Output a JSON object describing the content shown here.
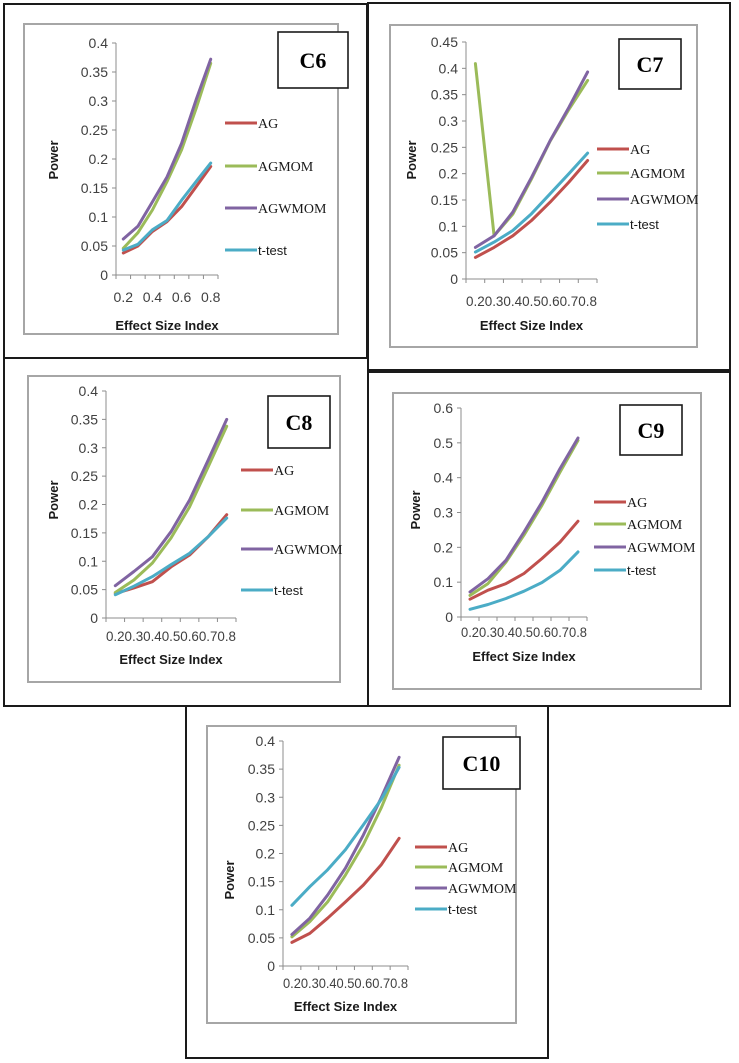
{
  "colors": {
    "AG": "#c0504d",
    "AGMOM": "#9bbb59",
    "AGWMOM": "#8064a2",
    "t-test": "#4bacc6"
  },
  "chart_data": [
    {
      "type": "line",
      "title": "C6",
      "xlabel": "Effect Size Index",
      "ylabel": "Power",
      "categories": [
        "0.2",
        "0.3",
        "0.4",
        "0.5",
        "0.6",
        "0.7",
        "0.8"
      ],
      "x_tick_labels_shown": [
        "0.2",
        "",
        "0.4",
        "",
        "0.6",
        "",
        "0.8"
      ],
      "ylim": [
        0,
        0.4
      ],
      "y_ticks": [
        "0",
        "0.05",
        "0.1",
        "0.15",
        "0.2",
        "0.25",
        "0.3",
        "0.35",
        "0.4"
      ],
      "grid": false,
      "legend_position": "right",
      "series": [
        {
          "name": "AG",
          "values": [
            0.038,
            0.05,
            0.075,
            0.092,
            0.118,
            0.152,
            0.187
          ]
        },
        {
          "name": "AGMOM",
          "values": [
            0.046,
            0.073,
            0.112,
            0.161,
            0.216,
            0.287,
            0.365
          ]
        },
        {
          "name": "AGWMOM",
          "values": [
            0.062,
            0.084,
            0.126,
            0.169,
            0.227,
            0.302,
            0.372
          ]
        },
        {
          "name": "t-test",
          "values": [
            0.043,
            0.053,
            0.078,
            0.094,
            0.129,
            0.161,
            0.193
          ]
        }
      ]
    },
    {
      "type": "line",
      "title": "C7",
      "xlabel": "Effect Size Index",
      "ylabel": "Power",
      "categories": [
        "0.2",
        "0.3",
        "0.4",
        "0.5",
        "0.6",
        "0.7",
        "0.8"
      ],
      "x_tick_labels_shown": [
        "0.2",
        "0.3",
        "0.4",
        "0.5",
        "0.6",
        "0.7",
        "0.8"
      ],
      "ylim": [
        0,
        0.45
      ],
      "y_ticks": [
        "0",
        "0.05",
        "0.1",
        "0.15",
        "0.2",
        "0.25",
        "0.3",
        "0.35",
        "0.4",
        "0.45"
      ],
      "grid": false,
      "legend_position": "right",
      "series": [
        {
          "name": "AG",
          "values": [
            0.041,
            0.06,
            0.082,
            0.111,
            0.146,
            0.184,
            0.225
          ]
        },
        {
          "name": "AGMOM",
          "values": [
            0.409,
            0.082,
            0.123,
            0.19,
            0.262,
            0.322,
            0.377
          ]
        },
        {
          "name": "AGWMOM",
          "values": [
            0.06,
            0.082,
            0.127,
            0.193,
            0.263,
            0.326,
            0.393
          ]
        },
        {
          "name": "t-test",
          "values": [
            0.051,
            0.07,
            0.092,
            0.124,
            0.162,
            0.2,
            0.239
          ]
        }
      ]
    },
    {
      "type": "line",
      "title": "C8",
      "xlabel": "Effect Size Index",
      "ylabel": "Power",
      "categories": [
        "0.2",
        "0.3",
        "0.4",
        "0.5",
        "0.6",
        "0.7",
        "0.8"
      ],
      "x_tick_labels_shown": [
        "0.2",
        "0.3",
        "0.4",
        "0.5",
        "0.6",
        "0.7",
        "0.8"
      ],
      "ylim": [
        0,
        0.4
      ],
      "y_ticks": [
        "0",
        "0.05",
        "0.1",
        "0.15",
        "0.2",
        "0.25",
        "0.3",
        "0.35",
        "0.4"
      ],
      "grid": false,
      "legend_position": "right",
      "series": [
        {
          "name": "AG",
          "values": [
            0.043,
            0.053,
            0.064,
            0.09,
            0.111,
            0.143,
            0.182
          ]
        },
        {
          "name": "AGMOM",
          "values": [
            0.045,
            0.067,
            0.097,
            0.141,
            0.196,
            0.266,
            0.338
          ]
        },
        {
          "name": "AGWMOM",
          "values": [
            0.057,
            0.082,
            0.108,
            0.152,
            0.208,
            0.278,
            0.35
          ]
        },
        {
          "name": "t-test",
          "values": [
            0.041,
            0.056,
            0.073,
            0.094,
            0.114,
            0.143,
            0.176
          ]
        }
      ]
    },
    {
      "type": "line",
      "title": "C9",
      "xlabel": "Effect Size Index",
      "ylabel": "Power",
      "categories": [
        "0.2",
        "0.3",
        "0.4",
        "0.5",
        "0.6",
        "0.7",
        "0.8"
      ],
      "x_tick_labels_shown": [
        "0.2",
        "0.3",
        "0.4",
        "0.5",
        "0.6",
        "0.7",
        "0.8"
      ],
      "ylim": [
        0,
        0.6
      ],
      "y_ticks": [
        "0",
        "0.1",
        "0.2",
        "0.3",
        "0.4",
        "0.5",
        "0.6"
      ],
      "grid": false,
      "legend_position": "right",
      "series": [
        {
          "name": "AG",
          "values": [
            0.051,
            0.077,
            0.096,
            0.125,
            0.168,
            0.215,
            0.275
          ]
        },
        {
          "name": "AGMOM",
          "values": [
            0.062,
            0.096,
            0.158,
            0.235,
            0.321,
            0.416,
            0.507
          ]
        },
        {
          "name": "AGWMOM",
          "values": [
            0.072,
            0.11,
            0.163,
            0.244,
            0.33,
            0.426,
            0.514
          ]
        },
        {
          "name": "t-test",
          "values": [
            0.022,
            0.036,
            0.053,
            0.074,
            0.099,
            0.134,
            0.187
          ]
        }
      ]
    },
    {
      "type": "line",
      "title": "C10",
      "xlabel": "Effect Size Index",
      "ylabel": "Power",
      "categories": [
        "0.2",
        "0.3",
        "0.4",
        "0.5",
        "0.6",
        "0.7",
        "0.8"
      ],
      "x_tick_labels_shown": [
        "0.2",
        "0.3",
        "0.4",
        "0.5",
        "0.6",
        "0.7",
        "0.8"
      ],
      "ylim": [
        0,
        0.4
      ],
      "y_ticks": [
        "0",
        "0.05",
        "0.1",
        "0.15",
        "0.2",
        "0.25",
        "0.3",
        "0.35",
        "0.4"
      ],
      "grid": false,
      "legend_position": "right",
      "series": [
        {
          "name": "AG",
          "values": [
            0.042,
            0.058,
            0.085,
            0.114,
            0.144,
            0.18,
            0.227
          ]
        },
        {
          "name": "AGMOM",
          "values": [
            0.052,
            0.079,
            0.114,
            0.162,
            0.216,
            0.281,
            0.357
          ]
        },
        {
          "name": "AGWMOM",
          "values": [
            0.056,
            0.085,
            0.126,
            0.174,
            0.233,
            0.299,
            0.371
          ]
        },
        {
          "name": "t-test",
          "values": [
            0.108,
            0.141,
            0.171,
            0.207,
            0.251,
            0.296,
            0.353
          ]
        }
      ]
    }
  ]
}
